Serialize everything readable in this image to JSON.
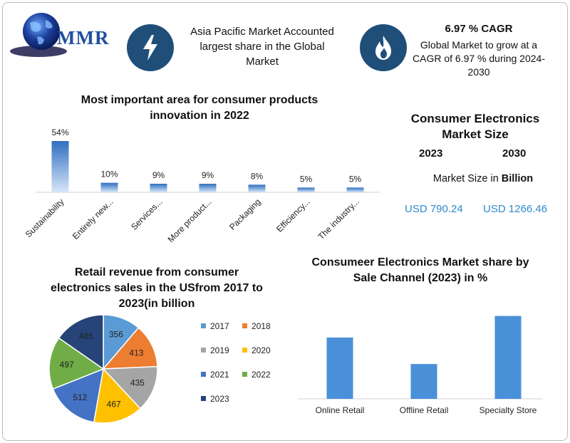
{
  "brand": {
    "logo_text": "MMR"
  },
  "highlights": [
    {
      "icon": "lightning-icon",
      "text": "Asia Pacific Market Accounted largest share in the Global Market"
    },
    {
      "icon": "flame-icon",
      "title": "6.97 % CAGR",
      "text": "Global Market to grow at a CAGR of 6.97 % during 2024-2030"
    }
  ],
  "market_size": {
    "title": "Consumer Electronics Market Size",
    "year_2023": "2023",
    "year_2030": "2030",
    "unit_label": "Market Size in",
    "unit_bold": "Billion",
    "value_2023": "USD 790.24",
    "value_2030": "USD 1266.46"
  },
  "colors": {
    "dark_blue": "#1f4e79",
    "bar_blue": "#4a90d9",
    "pie": [
      "#5b9bd5",
      "#ed7d31",
      "#a5a5a5",
      "#ffc000",
      "#4472c4",
      "#70ad47",
      "#264478"
    ]
  },
  "chart_data": [
    {
      "type": "bar",
      "title": "Most important area for consumer products innovation in 2022",
      "categories": [
        "Sustainability",
        "Entirely new...",
        "Services...",
        "More product...",
        "Packaging",
        "Efficiency...",
        "The industry..."
      ],
      "values": [
        54,
        10,
        9,
        9,
        8,
        5,
        5
      ],
      "data_labels": [
        "54%",
        "10%",
        "9%",
        "9%",
        "8%",
        "5%",
        "5%"
      ],
      "ylim": [
        0,
        60
      ],
      "grid": false
    },
    {
      "type": "pie",
      "title": "Retail revenue from consumer electronics sales in the USfrom 2017 to 2023(in billion",
      "labels": [
        "2017",
        "2018",
        "2019",
        "2020",
        "2021",
        "2022",
        "2023"
      ],
      "values": [
        356,
        413,
        435,
        467,
        512,
        497,
        485
      ],
      "legend": "right"
    },
    {
      "type": "bar",
      "title": "Consumeer Electronics Market share by Sale Channel (2023) in %",
      "categories": [
        "Online Retail",
        "Offline Retail",
        "Specialty Store"
      ],
      "values": [
        37,
        21,
        50
      ],
      "ylim": [
        0,
        55
      ],
      "grid": false
    }
  ]
}
